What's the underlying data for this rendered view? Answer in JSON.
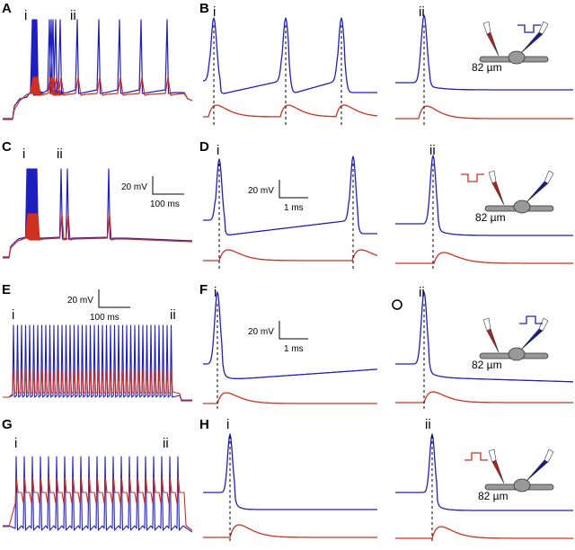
{
  "panels": {
    "A": {
      "label": "A",
      "i": "i",
      "ii": "ii"
    },
    "B": {
      "label": "B",
      "i": "i",
      "ii": "ii",
      "distance": "82 µm"
    },
    "C": {
      "label": "C",
      "i": "i",
      "ii": "ii",
      "scale_v": "20 mV",
      "scale_t": "100 ms"
    },
    "D": {
      "label": "D",
      "i": "i",
      "ii": "ii",
      "scale_v": "20 mV",
      "scale_t": "1 ms",
      "distance": "82 µm"
    },
    "E": {
      "label": "E",
      "i": "i",
      "ii": "ii",
      "scale_v": "20 mV",
      "scale_t": "100 ms"
    },
    "F": {
      "label": "F",
      "i": "i",
      "ii": "ii",
      "scale_v": "20 mV",
      "scale_t": "1 ms",
      "distance": "82 µm"
    },
    "G": {
      "label": "G",
      "i": "i",
      "ii": "ii"
    },
    "H": {
      "label": "H",
      "i": "i",
      "ii": "ii",
      "distance": "82 µm"
    }
  },
  "colors": {
    "blue": "#1f1fbf",
    "red": "#d03020",
    "pipette_red": "#b02020",
    "pipette_blue": "#1a1a90",
    "neuron": "#999999"
  }
}
